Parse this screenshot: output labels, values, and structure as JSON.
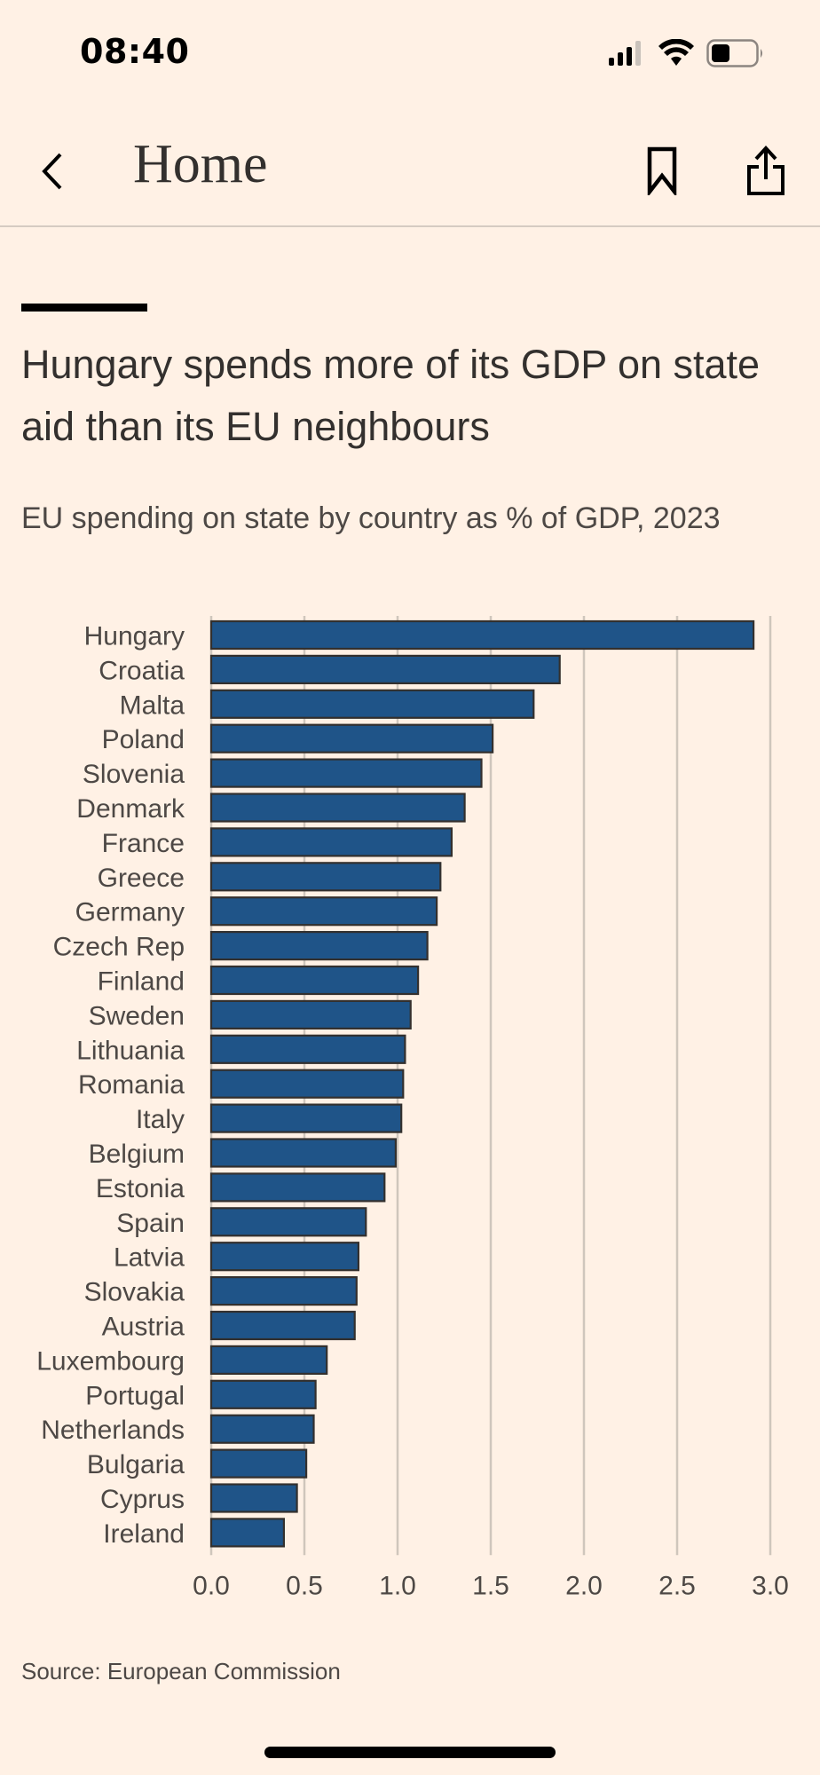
{
  "status_bar": {
    "time": "08:40",
    "icons": [
      "cellular-signal-icon",
      "wifi-icon",
      "battery-icon"
    ]
  },
  "nav": {
    "back_icon": "chevron-left-icon",
    "title": "Home",
    "bookmark_icon": "bookmark-icon",
    "share_icon": "share-icon"
  },
  "colors": {
    "background": "#FFF1E5",
    "bar_fill": "#1F5488",
    "bar_stroke": "#33302E",
    "gridline": "#CFC6BC",
    "text": "#33302E"
  },
  "chart_data": {
    "type": "bar",
    "orientation": "horizontal",
    "title": "Hungary spends more of its GDP on state aid than its EU neighbours",
    "subtitle": "EU spending on state by country as % of GDP, 2023",
    "xlabel": "",
    "ylabel": "",
    "xlim": [
      0,
      3.0
    ],
    "xticks": [
      "0.0",
      "0.5",
      "1.0",
      "1.5",
      "2.0",
      "2.5",
      "3.0"
    ],
    "xtick_values": [
      0,
      0.5,
      1.0,
      1.5,
      2.0,
      2.5,
      3.0
    ],
    "grid": "vertical",
    "categories": [
      "Hungary",
      "Croatia",
      "Malta",
      "Poland",
      "Slovenia",
      "Denmark",
      "France",
      "Greece",
      "Germany",
      "Czech Rep",
      "Finland",
      "Sweden",
      "Lithuania",
      "Romania",
      "Italy",
      "Belgium",
      "Estonia",
      "Spain",
      "Latvia",
      "Slovakia",
      "Austria",
      "Luxembourg",
      "Portugal",
      "Netherlands",
      "Bulgaria",
      "Cyprus",
      "Ireland"
    ],
    "values": [
      2.91,
      1.87,
      1.73,
      1.51,
      1.45,
      1.36,
      1.29,
      1.23,
      1.21,
      1.16,
      1.11,
      1.07,
      1.04,
      1.03,
      1.02,
      0.99,
      0.93,
      0.83,
      0.79,
      0.78,
      0.77,
      0.62,
      0.56,
      0.55,
      0.51,
      0.46,
      0.39
    ],
    "source": "Source: European Commission"
  }
}
